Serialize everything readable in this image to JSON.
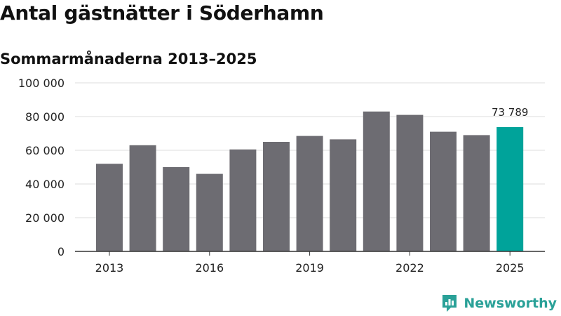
{
  "title": "Antal gästnätter i Söderhamn",
  "subtitle": "Sommarmånaderna 2013–2025",
  "brand": {
    "name": "Newsworthy",
    "logo_icon": "newsworthy-logo-icon"
  },
  "colors": {
    "bar": "#6d6c72",
    "highlight": "#00a39a",
    "grid": "#dddddd",
    "axis": "#333333",
    "text": "#222222"
  },
  "chart_data": {
    "type": "bar",
    "title": "Antal gästnätter i Söderhamn",
    "subtitle": "Sommarmånaderna 2013–2025",
    "xlabel": "",
    "ylabel": "",
    "categories": [
      "2013",
      "2014",
      "2015",
      "2016",
      "2017",
      "2018",
      "2019",
      "2020",
      "2021",
      "2022",
      "2023",
      "2024",
      "2025"
    ],
    "values": [
      52000,
      63000,
      50000,
      46000,
      60500,
      65000,
      68500,
      66500,
      83000,
      81000,
      71000,
      69000,
      73789
    ],
    "ylim": [
      0,
      100000
    ],
    "yticks": [
      0,
      20000,
      40000,
      60000,
      80000,
      100000
    ],
    "ytick_labels": [
      "0",
      "20 000",
      "40 000",
      "60 000",
      "80 000",
      "100 000"
    ],
    "xtick_labels": [
      "2013",
      "2016",
      "2019",
      "2022",
      "2025"
    ],
    "highlight_index": 12,
    "annotations": [
      {
        "category": "2025",
        "text": "73 789"
      }
    ],
    "grid": true,
    "legend": "none"
  }
}
